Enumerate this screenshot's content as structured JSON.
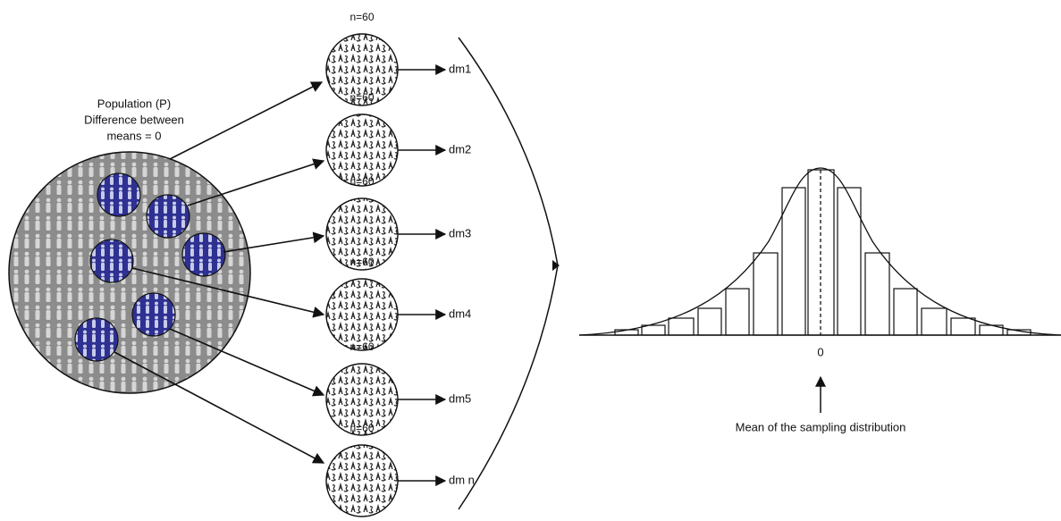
{
  "population": {
    "label_lines": [
      "Population (P)",
      "Difference between",
      "means = 0"
    ]
  },
  "samples": [
    {
      "size_label": "n=60",
      "mean_label": "dm1"
    },
    {
      "size_label": "n=60",
      "mean_label": "dm2"
    },
    {
      "size_label": "n=60",
      "mean_label": "dm3"
    },
    {
      "size_label": "n=60",
      "mean_label": "dm4"
    },
    {
      "size_label": "n=60",
      "mean_label": "dm5"
    },
    {
      "size_label": "n=60",
      "mean_label": "dm n"
    }
  ],
  "distribution": {
    "zero_label": "0",
    "caption": "Mean of the sampling distribution"
  }
}
